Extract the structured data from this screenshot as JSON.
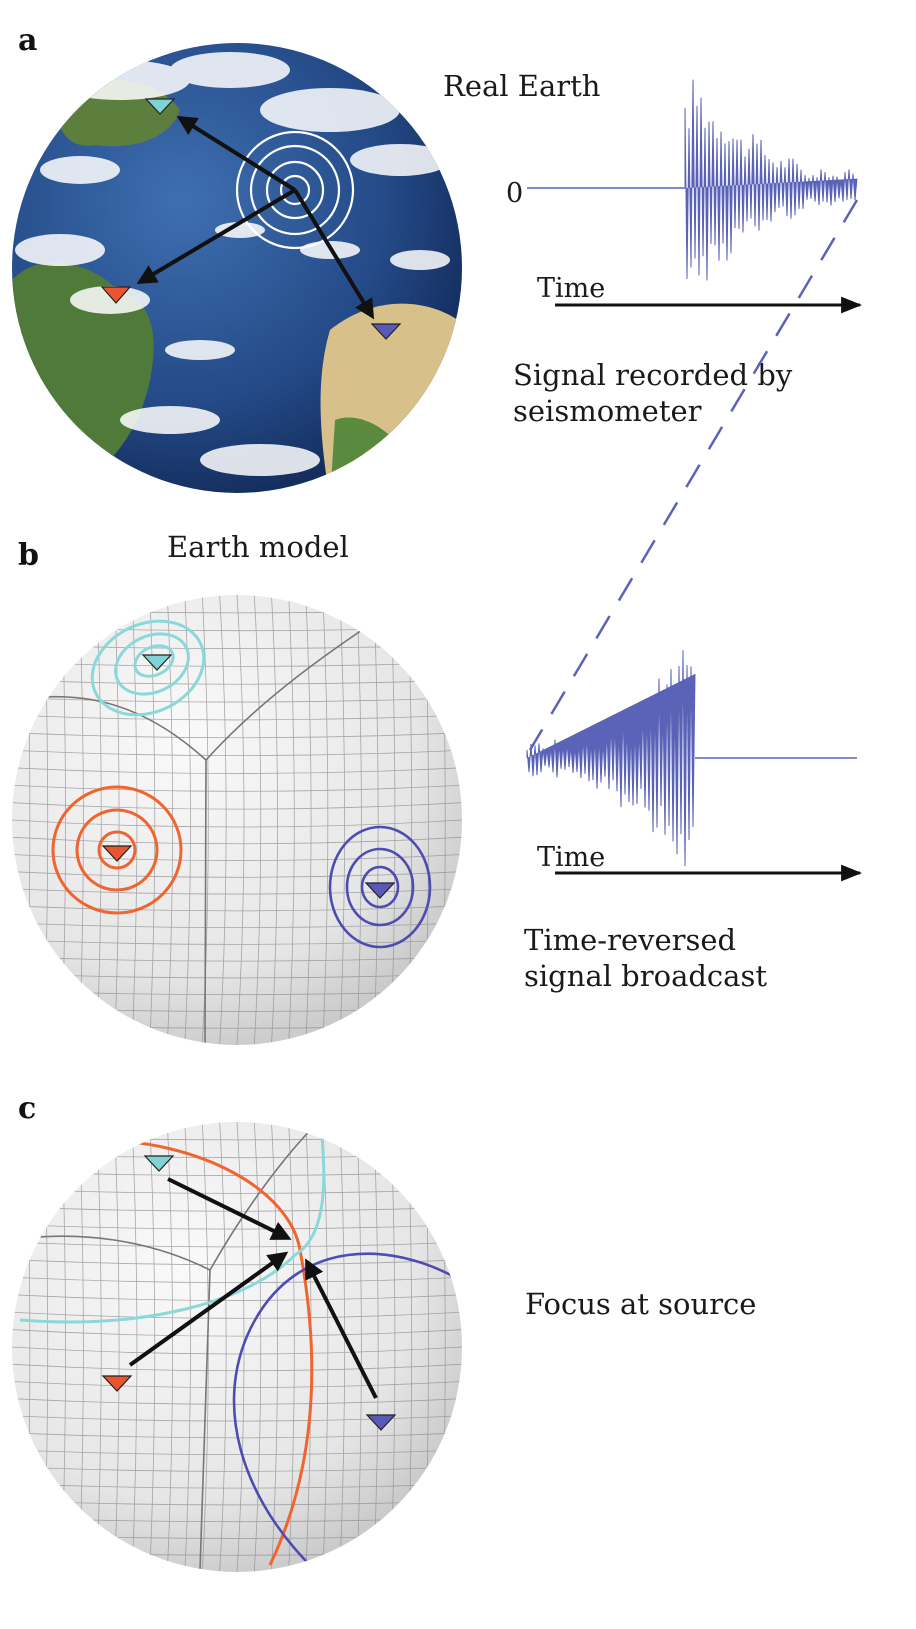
{
  "panels": {
    "a": {
      "letter": "a",
      "title": "Real Earth",
      "zero_label": "0",
      "time_label": "Time",
      "caption_line1": "Signal recorded by",
      "caption_line2": "seismometer"
    },
    "b": {
      "letter": "b",
      "title": "Earth model",
      "time_label": "Time",
      "caption_line1": "Time-reversed",
      "caption_line2": "signal broadcast"
    },
    "c": {
      "letter": "c",
      "caption": "Focus at source"
    }
  },
  "stations": [
    {
      "name": "station-cyan",
      "color": "#7fd3d6"
    },
    {
      "name": "station-red",
      "color": "#e8552e"
    },
    {
      "name": "station-blue",
      "color": "#5a58b8"
    }
  ],
  "colors": {
    "cyan_wave": "#8ad8d8",
    "red_wave": "#f0642f",
    "blue_wave": "#4e4cb0",
    "seismogram": "#5a63b8",
    "ocean": "#2c4f8e",
    "land_green": "#4f7a3a",
    "land_desert": "#d8c08a",
    "grid_line": "#8e8e8e"
  }
}
